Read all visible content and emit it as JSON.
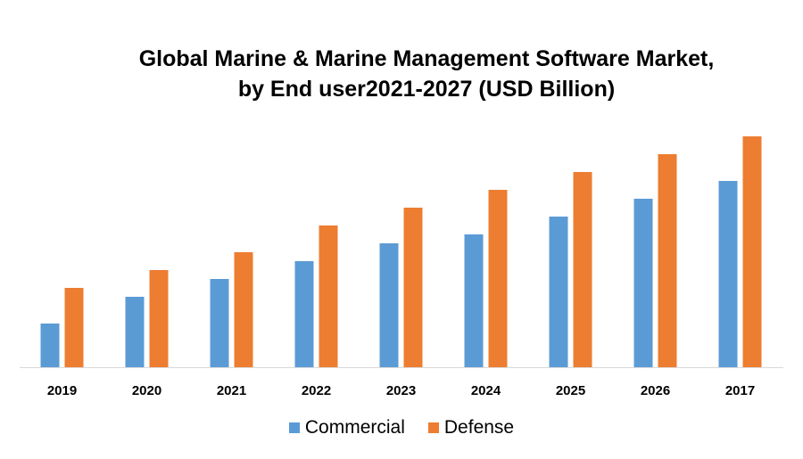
{
  "chart_data": {
    "type": "bar",
    "title_line1": "Global Marine & Marine Management Software Market,",
    "title_line2": "by End user2021-2027 (USD Billion)",
    "categories": [
      "2019",
      "2020",
      "2021",
      "2022",
      "2023",
      "2024",
      "2025",
      "2026",
      "2017"
    ],
    "series": [
      {
        "name": "Commercial",
        "color": "#5B9BD5",
        "values": [
          4.9,
          7.9,
          9.9,
          11.9,
          13.9,
          14.9,
          16.9,
          18.9,
          20.9
        ]
      },
      {
        "name": "Defense",
        "color": "#ED7D31",
        "values": [
          8.9,
          10.9,
          12.9,
          15.9,
          17.9,
          19.9,
          21.9,
          23.9,
          25.9
        ]
      }
    ],
    "xlabel": "",
    "ylabel": "",
    "y_axis_shown": false,
    "grid": false,
    "legend": "bottom"
  }
}
